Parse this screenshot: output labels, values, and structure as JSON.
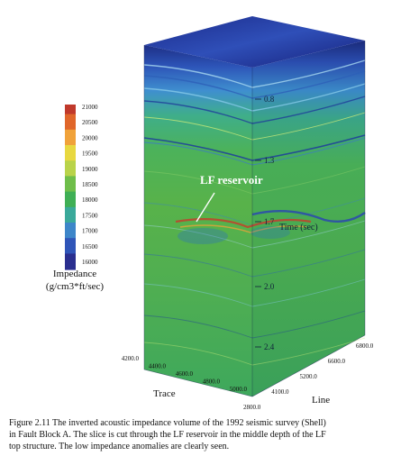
{
  "colorbar": {
    "ticks": [
      "21000",
      "20500",
      "20000",
      "19500",
      "19000",
      "18500",
      "18000",
      "17500",
      "17000",
      "16500",
      "16000"
    ],
    "colors": [
      "#c0392b",
      "#e0662a",
      "#f0a23a",
      "#e8d840",
      "#b9d34a",
      "#6fbe4a",
      "#3faf55",
      "#3aa99a",
      "#3d86c9",
      "#2f55b8",
      "#2a2f8f"
    ],
    "label_line1": "Impedance",
    "label_line2": "(g/cm3*ft/sec)"
  },
  "cube": {
    "annotation": "LF reservoir",
    "time_label": "Time (sec)",
    "time_ticks": [
      "0.8",
      "1.3",
      "1.7",
      "2.0",
      "2.4"
    ],
    "trace_ticks": [
      "4200.0",
      "4400.0",
      "4600.0",
      "4800.0",
      "5000.0"
    ],
    "trace_label": "Trace",
    "line_ticks": [
      "6800.0",
      "6600.0",
      "5200.0",
      "4100.0",
      "2800.0"
    ],
    "line_label": "Line"
  },
  "caption": {
    "line1": "Figure 2.11 The inverted acoustic impedance volume of the 1992 seismic survey (Shell)",
    "line2": "in Fault Block A.  The slice is cut through the LF reservoir in the middle depth of the LF",
    "line3": "top structure.  The low impedance anomalies are clearly seen."
  }
}
